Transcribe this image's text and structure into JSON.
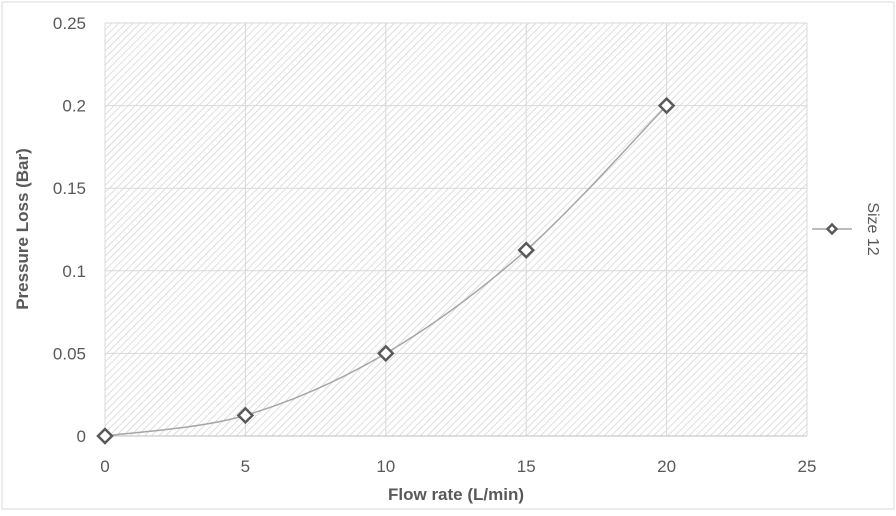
{
  "chart_data": {
    "type": "line",
    "xlabel": "Flow rate (L/min)",
    "ylabel": "Pressure Loss (Bar)",
    "xlim": [
      0,
      25
    ],
    "ylim": [
      0,
      0.25
    ],
    "x_ticks": [
      "0",
      "5",
      "10",
      "15",
      "20",
      "25"
    ],
    "y_ticks": [
      "0",
      "0.05",
      "0.1",
      "0.15",
      "0.2",
      "0.25"
    ],
    "grid": true,
    "smooth": true,
    "marker": "diamond",
    "legend_position": "right",
    "series": [
      {
        "name": "Size 12",
        "color": "#a6a6a6",
        "marker_color": "#595959",
        "x": [
          0,
          5,
          10,
          15,
          20
        ],
        "y": [
          0,
          0.0125,
          0.05,
          0.1125,
          0.2
        ]
      }
    ]
  }
}
